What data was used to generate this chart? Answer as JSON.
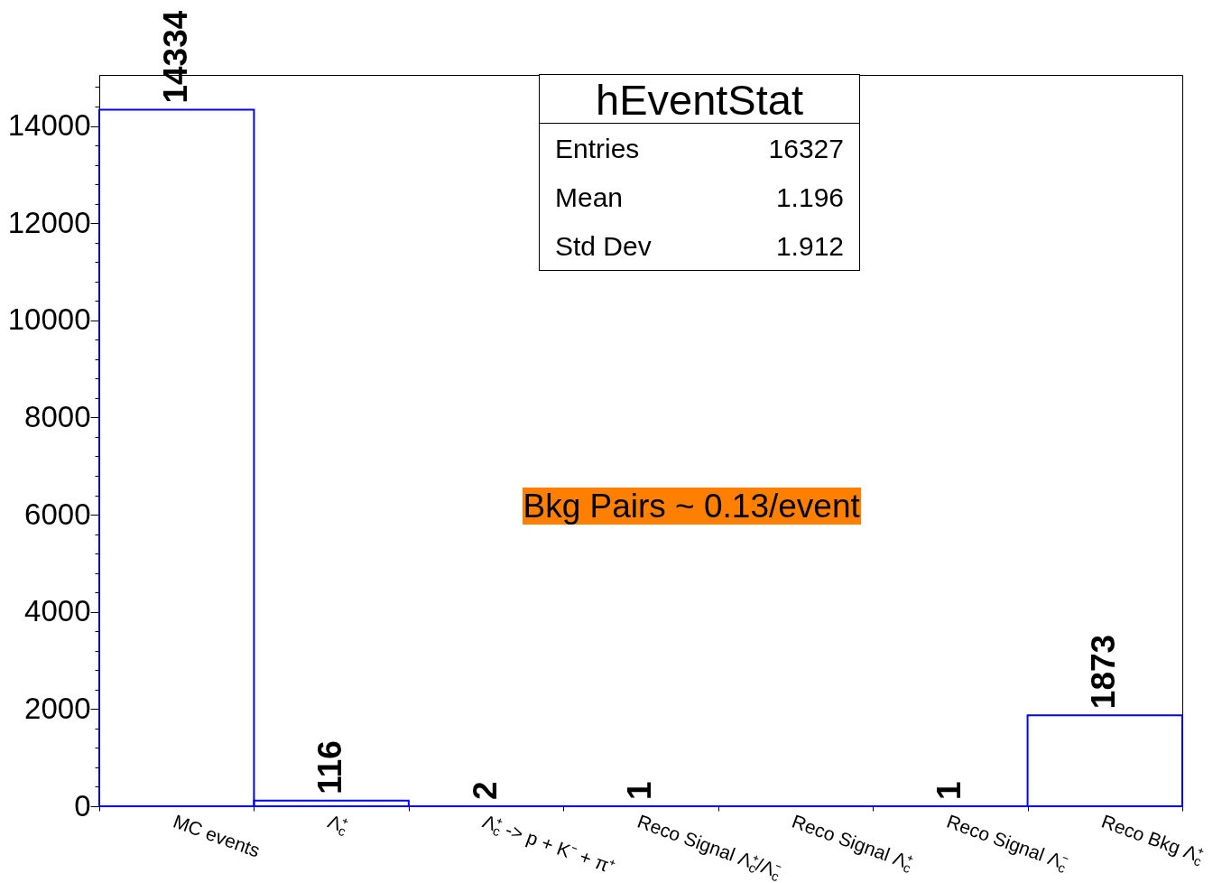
{
  "chart_data": {
    "type": "bar",
    "categories": [
      "MC events",
      "Λ$_{c}$⁺",
      "Λ$_{c}$⁺ -> p + K⁻ + π⁺",
      "Reco Signal Λ$_{c}$⁺/Λ$_{c}$⁻",
      "Reco Signal Λ$_{c}$⁺",
      "Reco Signal Λ$_{c}$⁻",
      "Reco Bkg Λ$_{c}$⁺"
    ],
    "values": [
      14334,
      116,
      2,
      1,
      0,
      1,
      1873
    ],
    "color": "#0000ff",
    "value_labels": [
      "14334",
      "116",
      "2",
      "1",
      null,
      "1",
      "1873"
    ],
    "ylim": [
      0,
      15050
    ],
    "yticks": [
      0,
      {
        "value": 400,
        "label": null
      },
      {
        "value": 800,
        "label": null
      },
      {
        "value": 1200,
        "label": null
      },
      {
        "value": 1600,
        "label": null
      },
      2000,
      {
        "value": 2400,
        "label": null
      },
      {
        "value": 2800,
        "label": null
      },
      {
        "value": 3200,
        "label": null
      },
      {
        "value": 3600,
        "label": null
      },
      4000,
      {
        "value": 4400,
        "label": null
      },
      {
        "value": 4800,
        "label": null
      },
      {
        "value": 5200,
        "label": null
      },
      {
        "value": 5600,
        "label": null
      },
      6000,
      {
        "value": 6400,
        "label": null
      },
      {
        "value": 6800,
        "label": null
      },
      {
        "value": 7200,
        "label": null
      },
      {
        "value": 7600,
        "label": null
      },
      8000,
      {
        "value": 8400,
        "label": null
      },
      {
        "value": 8800,
        "label": null
      },
      {
        "value": 9200,
        "label": null
      },
      {
        "value": 9600,
        "label": null
      },
      10000,
      {
        "value": 10400,
        "label": null
      },
      {
        "value": 10800,
        "label": null
      },
      {
        "value": 11200,
        "label": null
      },
      {
        "value": 11600,
        "label": null
      },
      12000,
      {
        "value": 12400,
        "label": null
      },
      {
        "value": 12800,
        "label": null
      },
      {
        "value": 13200,
        "label": null
      },
      {
        "value": 13600,
        "label": null
      },
      14000,
      {
        "value": 14400,
        "label": null
      },
      {
        "value": 14800,
        "label": null
      }
    ],
    "annotations": [
      "hEventStat",
      "Entries",
      "16327",
      "Mean",
      "1.196",
      "Std Dev",
      "1.912",
      "Bkg Pairs ~ 0.13/event"
    ]
  }
}
